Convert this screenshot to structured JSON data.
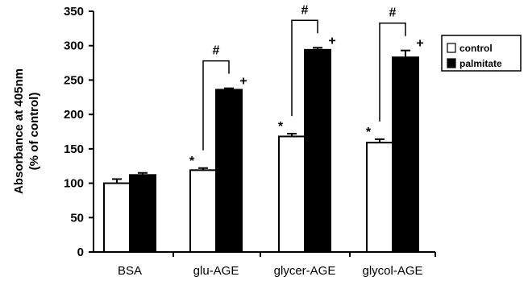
{
  "chart_data": {
    "type": "bar",
    "title": "",
    "xlabel": "",
    "ylabel_lines": [
      "Absorbance at 405nm",
      "(% of control)"
    ],
    "ylim": [
      0,
      350
    ],
    "yticks": [
      0,
      50,
      100,
      150,
      200,
      250,
      300,
      350
    ],
    "categories": [
      "BSA",
      "glu-AGE",
      "glycer-AGE",
      "glycol-AGE"
    ],
    "series": [
      {
        "name": "control",
        "color": "#ffffff",
        "values": [
          100,
          119,
          168,
          159
        ],
        "errors": [
          6,
          3,
          4,
          5
        ],
        "marks": [
          "",
          "*",
          "*",
          "*"
        ]
      },
      {
        "name": "palmitate",
        "color": "#000000",
        "values": [
          112,
          236,
          294,
          283
        ],
        "errors": [
          3,
          2,
          3,
          10
        ],
        "marks": [
          "",
          "+",
          "+",
          "+"
        ]
      }
    ],
    "comparison_brackets": [
      {
        "category_index": 1,
        "symbol": "#"
      },
      {
        "category_index": 2,
        "symbol": "#"
      },
      {
        "category_index": 3,
        "symbol": "#"
      }
    ],
    "legend": {
      "position": "right",
      "entries": [
        "control",
        "palmitate"
      ]
    },
    "grid": false
  }
}
